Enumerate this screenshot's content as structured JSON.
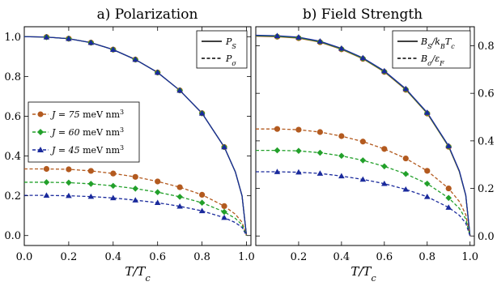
{
  "chart_data": [
    {
      "type": "line",
      "title": "a) Polarization",
      "xlabel": "T/T_c",
      "ylabel": "",
      "xlim": [
        0,
        1.02
      ],
      "ylim": [
        -0.05,
        1.05
      ],
      "xticks": [
        "0.0",
        "0.2",
        "0.4",
        "0.6",
        "0.8",
        "1.0"
      ],
      "yticks": [
        "0.0",
        "0.2",
        "0.4",
        "0.6",
        "0.8",
        "1.0"
      ],
      "grid": false,
      "legend_solid_dashed": {
        "placement": "top-right",
        "entries": [
          "P_S",
          "P_σ"
        ]
      },
      "legend_series": {
        "placement": "middle-left",
        "entries": [
          "J = 75 meV nm³",
          "J = 60 meV nm³",
          "J = 45 meV nm³"
        ]
      },
      "series": [
        {
          "name": "J = 75 meV nm³",
          "color": "#b35a1f",
          "marker": "circle",
          "style": "solid",
          "x": [
            0,
            0.1,
            0.2,
            0.3,
            0.4,
            0.5,
            0.6,
            0.7,
            0.8,
            0.9,
            0.95,
            0.98,
            1.0
          ],
          "y": [
            1.0,
            0.998,
            0.99,
            0.97,
            0.935,
            0.885,
            0.82,
            0.73,
            0.615,
            0.445,
            0.32,
            0.2,
            0.0
          ]
        },
        {
          "name": "J = 60 meV nm³",
          "color": "#22a02a",
          "marker": "diamond",
          "style": "solid",
          "x": [
            0,
            0.1,
            0.2,
            0.3,
            0.4,
            0.5,
            0.6,
            0.7,
            0.8,
            0.9,
            0.95,
            0.98,
            1.0
          ],
          "y": [
            1.0,
            0.998,
            0.99,
            0.97,
            0.935,
            0.885,
            0.82,
            0.73,
            0.615,
            0.445,
            0.32,
            0.2,
            0.0
          ]
        },
        {
          "name": "J = 45 meV nm³",
          "color": "#1a2a9c",
          "marker": "triangle",
          "style": "solid",
          "x": [
            0,
            0.1,
            0.2,
            0.3,
            0.4,
            0.5,
            0.6,
            0.7,
            0.8,
            0.9,
            0.95,
            0.98,
            1.0
          ],
          "y": [
            1.0,
            0.998,
            0.99,
            0.97,
            0.935,
            0.885,
            0.82,
            0.73,
            0.615,
            0.445,
            0.32,
            0.2,
            0.0
          ]
        },
        {
          "name": "J = 75 meV nm³",
          "color": "#b35a1f",
          "marker": "circle",
          "style": "dashed",
          "x": [
            0,
            0.1,
            0.2,
            0.3,
            0.4,
            0.5,
            0.6,
            0.7,
            0.8,
            0.9,
            0.95,
            0.98,
            1.0
          ],
          "y": [
            0.335,
            0.335,
            0.333,
            0.325,
            0.312,
            0.295,
            0.272,
            0.243,
            0.205,
            0.148,
            0.107,
            0.067,
            0.0
          ]
        },
        {
          "name": "J = 60 meV nm³",
          "color": "#22a02a",
          "marker": "diamond",
          "style": "dashed",
          "x": [
            0,
            0.1,
            0.2,
            0.3,
            0.4,
            0.5,
            0.6,
            0.7,
            0.8,
            0.9,
            0.95,
            0.98,
            1.0
          ],
          "y": [
            0.268,
            0.268,
            0.266,
            0.26,
            0.25,
            0.236,
            0.218,
            0.195,
            0.165,
            0.119,
            0.086,
            0.054,
            0.0
          ]
        },
        {
          "name": "J = 45 meV nm³",
          "color": "#1a2a9c",
          "marker": "triangle",
          "style": "dashed",
          "x": [
            0,
            0.1,
            0.2,
            0.3,
            0.4,
            0.5,
            0.6,
            0.7,
            0.8,
            0.9,
            0.95,
            0.98,
            1.0
          ],
          "y": [
            0.202,
            0.202,
            0.2,
            0.196,
            0.189,
            0.178,
            0.165,
            0.147,
            0.124,
            0.09,
            0.065,
            0.041,
            0.0
          ]
        }
      ]
    },
    {
      "type": "line",
      "title": "b) Field Strength",
      "xlabel": "T/T_c",
      "ylabel": "",
      "xlim": [
        0,
        1.02
      ],
      "ylim": [
        -0.04,
        0.88
      ],
      "xticks": [
        "0.2",
        "0.4",
        "0.6",
        "0.8",
        "1.0"
      ],
      "yticks": [
        "0.0",
        "0.2",
        "0.4",
        "0.6",
        "0.8"
      ],
      "y_axis_side": "right",
      "grid": false,
      "legend_solid_dashed": {
        "placement": "top-right",
        "entries": [
          "B_S/k_B T_c",
          "B_σ/ε_F"
        ]
      },
      "series": [
        {
          "name": "J = 75 meV nm³",
          "color": "#b35a1f",
          "marker": "circle",
          "style": "solid",
          "x": [
            0,
            0.1,
            0.2,
            0.3,
            0.4,
            0.5,
            0.6,
            0.7,
            0.8,
            0.9,
            0.95,
            0.98,
            1.0
          ],
          "y": [
            0.84,
            0.838,
            0.832,
            0.815,
            0.785,
            0.745,
            0.69,
            0.615,
            0.515,
            0.375,
            0.27,
            0.17,
            0.0
          ]
        },
        {
          "name": "J = 60 meV nm³",
          "color": "#22a02a",
          "marker": "diamond",
          "style": "solid",
          "x": [
            0,
            0.1,
            0.2,
            0.3,
            0.4,
            0.5,
            0.6,
            0.7,
            0.8,
            0.9,
            0.95,
            0.98,
            1.0
          ],
          "y": [
            0.842,
            0.84,
            0.834,
            0.817,
            0.787,
            0.747,
            0.692,
            0.617,
            0.517,
            0.377,
            0.272,
            0.171,
            0.0
          ]
        },
        {
          "name": "J = 45 meV nm³",
          "color": "#1a2a9c",
          "marker": "triangle",
          "style": "solid",
          "x": [
            0,
            0.1,
            0.2,
            0.3,
            0.4,
            0.5,
            0.6,
            0.7,
            0.8,
            0.9,
            0.95,
            0.98,
            1.0
          ],
          "y": [
            0.844,
            0.842,
            0.836,
            0.819,
            0.789,
            0.749,
            0.694,
            0.619,
            0.519,
            0.379,
            0.274,
            0.172,
            0.0
          ]
        },
        {
          "name": "J = 75 meV nm³",
          "color": "#b35a1f",
          "marker": "circle",
          "style": "dashed",
          "x": [
            0,
            0.1,
            0.2,
            0.3,
            0.4,
            0.5,
            0.6,
            0.7,
            0.8,
            0.9,
            0.95,
            0.98,
            1.0
          ],
          "y": [
            0.45,
            0.45,
            0.447,
            0.437,
            0.42,
            0.397,
            0.366,
            0.326,
            0.274,
            0.2,
            0.145,
            0.09,
            0.0
          ]
        },
        {
          "name": "J = 60 meV nm³",
          "color": "#22a02a",
          "marker": "diamond",
          "style": "dashed",
          "x": [
            0,
            0.1,
            0.2,
            0.3,
            0.4,
            0.5,
            0.6,
            0.7,
            0.8,
            0.9,
            0.95,
            0.98,
            1.0
          ],
          "y": [
            0.36,
            0.36,
            0.358,
            0.35,
            0.337,
            0.318,
            0.293,
            0.261,
            0.22,
            0.16,
            0.116,
            0.072,
            0.0
          ]
        },
        {
          "name": "J = 45 meV nm³",
          "color": "#1a2a9c",
          "marker": "triangle",
          "style": "dashed",
          "x": [
            0,
            0.1,
            0.2,
            0.3,
            0.4,
            0.5,
            0.6,
            0.7,
            0.8,
            0.9,
            0.95,
            0.98,
            1.0
          ],
          "y": [
            0.27,
            0.27,
            0.268,
            0.263,
            0.252,
            0.238,
            0.22,
            0.196,
            0.165,
            0.12,
            0.087,
            0.054,
            0.0
          ]
        }
      ]
    }
  ]
}
